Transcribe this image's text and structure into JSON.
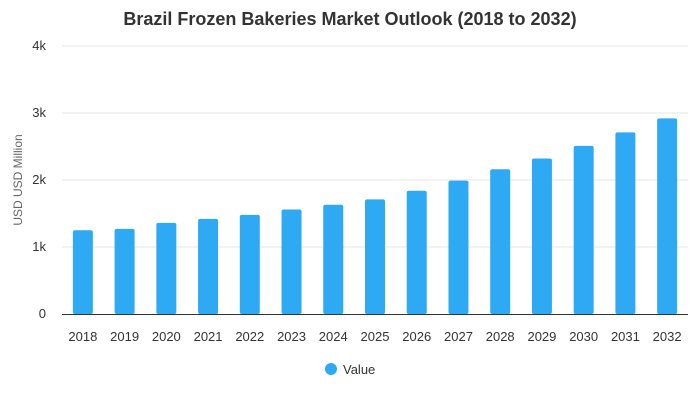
{
  "chart_data": {
    "type": "bar",
    "title": "Brazil Frozen Bakeries Market Outlook (2018 to 2032)",
    "xlabel": "",
    "ylabel": "USD USD Million",
    "categories": [
      "2018",
      "2019",
      "2020",
      "2021",
      "2022",
      "2023",
      "2024",
      "2025",
      "2026",
      "2027",
      "2028",
      "2029",
      "2030",
      "2031",
      "2032"
    ],
    "series": [
      {
        "name": "Value",
        "values": [
          1250,
          1270,
          1360,
          1420,
          1480,
          1560,
          1630,
          1710,
          1840,
          1990,
          2160,
          2320,
          2510,
          2710,
          2920
        ],
        "color": "#2eaaf5"
      }
    ],
    "ylim": [
      0,
      4000
    ],
    "yticks": [
      0,
      1000,
      2000,
      3000,
      4000
    ],
    "ytick_labels": [
      "0",
      "1k",
      "2k",
      "3k",
      "4k"
    ],
    "grid": true,
    "legend_position": "bottom"
  }
}
